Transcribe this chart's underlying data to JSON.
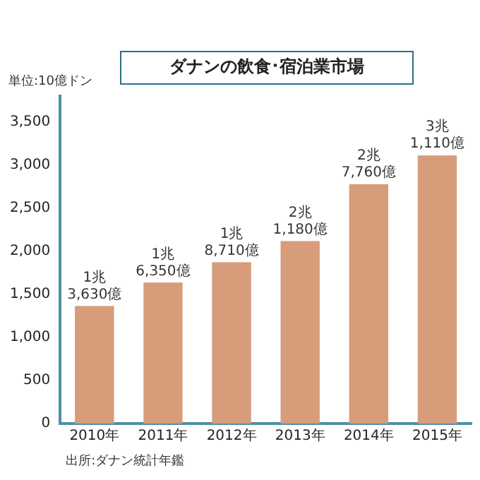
{
  "chart_data": {
    "type": "bar",
    "title": "ダナンの飲食･宿泊業市場",
    "ylabel": "単位:10億ドン",
    "categories": [
      "2010年",
      "2011年",
      "2012年",
      "2013年",
      "2014年",
      "2015年"
    ],
    "values": [
      1363,
      1635,
      1871,
      2118,
      2776,
      3111
    ],
    "color": "#d79c7a",
    "ylim": [
      0,
      3800
    ],
    "yticks": [
      0,
      500,
      {
        "value": 1000,
        "label": "1,000"
      },
      {
        "value": 1500,
        "label": "1,500"
      },
      {
        "value": 2000,
        "label": "2,000"
      },
      {
        "value": 2500,
        "label": "2,500"
      },
      {
        "value": 3000,
        "label": "3,000"
      },
      {
        "value": 3500,
        "label": "3,500"
      }
    ],
    "grid": false,
    "legend": false,
    "annotations": [
      {
        "text": "1兆\n3,630億",
        "x": "2010年",
        "y": 1363
      },
      {
        "text": "1兆\n6,350億",
        "x": "2011年",
        "y": 1635
      },
      {
        "text": "1兆\n8,710億",
        "x": "2012年",
        "y": 1871
      },
      {
        "text": "2兆\n1,180億",
        "x": "2013年",
        "y": 2118
      },
      {
        "text": "2兆\n7,760億",
        "x": "2014年",
        "y": 2776
      },
      {
        "text": "3兆\n1,110億",
        "x": "2015年",
        "y": 3111
      },
      "出所:ダナン統計年鑑"
    ]
  }
}
